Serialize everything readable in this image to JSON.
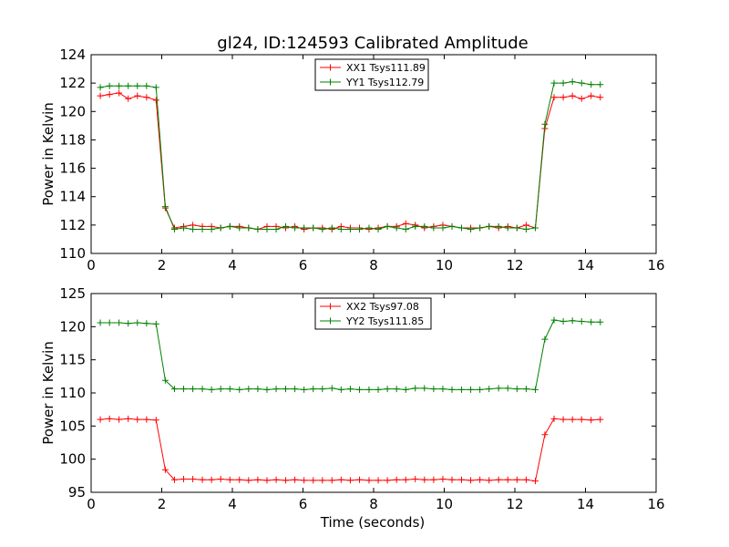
{
  "chart_data": [
    {
      "type": "line",
      "title": "gl24, ID:124593 Calibrated Amplitude",
      "xlabel": "",
      "ylabel": "Power in Kelvin",
      "xlim": [
        0,
        16
      ],
      "ylim": [
        110,
        124
      ],
      "xticks": [
        0,
        2,
        4,
        6,
        8,
        10,
        12,
        14,
        16
      ],
      "yticks": [
        110,
        112,
        114,
        116,
        118,
        120,
        122,
        124
      ],
      "legend": "top-center",
      "grid": false,
      "x": [
        0.26,
        0.52,
        0.79,
        1.05,
        1.31,
        1.57,
        1.84,
        2.1,
        2.36,
        2.62,
        2.88,
        3.15,
        3.41,
        3.67,
        3.93,
        4.2,
        4.46,
        4.72,
        4.98,
        5.24,
        5.51,
        5.77,
        6.03,
        6.29,
        6.55,
        6.82,
        7.08,
        7.34,
        7.6,
        7.87,
        8.13,
        8.39,
        8.65,
        8.91,
        9.18,
        9.44,
        9.7,
        9.96,
        10.22,
        10.49,
        10.75,
        11.01,
        11.27,
        11.54,
        11.8,
        12.06,
        12.32,
        12.58,
        12.85,
        13.11,
        13.37,
        13.63,
        13.89,
        14.16,
        14.42
      ],
      "series": [
        {
          "name": "XX1 Tsys111.89",
          "color": "#ff0000",
          "values": [
            121.1,
            121.2,
            121.3,
            120.9,
            121.1,
            121.0,
            120.8,
            113.2,
            111.8,
            111.9,
            112.0,
            111.9,
            111.9,
            111.8,
            111.9,
            111.9,
            111.8,
            111.7,
            111.9,
            111.9,
            111.8,
            111.9,
            111.7,
            111.8,
            111.8,
            111.7,
            111.9,
            111.8,
            111.8,
            111.7,
            111.8,
            111.9,
            111.9,
            112.1,
            112.0,
            111.8,
            111.9,
            112.0,
            111.9,
            111.8,
            111.8,
            111.8,
            111.9,
            111.8,
            111.9,
            111.8,
            112.0,
            111.8,
            118.8,
            121.0,
            121.0,
            121.1,
            120.9,
            121.1,
            121.0
          ]
        },
        {
          "name": "YY1 Tsys112.79",
          "color": "#008000",
          "values": [
            121.7,
            121.8,
            121.8,
            121.8,
            121.8,
            121.8,
            121.7,
            113.3,
            111.7,
            111.8,
            111.7,
            111.7,
            111.7,
            111.8,
            111.9,
            111.8,
            111.8,
            111.7,
            111.7,
            111.7,
            111.9,
            111.8,
            111.8,
            111.8,
            111.7,
            111.8,
            111.7,
            111.7,
            111.7,
            111.8,
            111.7,
            111.9,
            111.8,
            111.7,
            111.9,
            111.9,
            111.8,
            111.8,
            111.9,
            111.8,
            111.7,
            111.8,
            111.9,
            111.9,
            111.8,
            111.8,
            111.7,
            111.8,
            119.1,
            122.0,
            122.0,
            122.1,
            122.0,
            121.9,
            121.9
          ]
        }
      ]
    },
    {
      "type": "line",
      "title": "",
      "xlabel": "Time (seconds)",
      "ylabel": "Power in Kelvin",
      "xlim": [
        0,
        16
      ],
      "ylim": [
        95,
        125
      ],
      "xticks": [
        0,
        2,
        4,
        6,
        8,
        10,
        12,
        14,
        16
      ],
      "yticks": [
        95,
        100,
        105,
        110,
        115,
        120,
        125
      ],
      "legend": "top-center",
      "grid": false,
      "x": [
        0.26,
        0.52,
        0.79,
        1.05,
        1.31,
        1.57,
        1.84,
        2.1,
        2.36,
        2.62,
        2.88,
        3.15,
        3.41,
        3.67,
        3.93,
        4.2,
        4.46,
        4.72,
        4.98,
        5.24,
        5.51,
        5.77,
        6.03,
        6.29,
        6.55,
        6.82,
        7.08,
        7.34,
        7.6,
        7.87,
        8.13,
        8.39,
        8.65,
        8.91,
        9.18,
        9.44,
        9.7,
        9.96,
        10.22,
        10.49,
        10.75,
        11.01,
        11.27,
        11.54,
        11.8,
        12.06,
        12.32,
        12.58,
        12.85,
        13.11,
        13.37,
        13.63,
        13.89,
        14.16,
        14.42
      ],
      "series": [
        {
          "name": "XX2 Tsys97.08",
          "color": "#ff0000",
          "values": [
            106.0,
            106.1,
            106.0,
            106.1,
            106.0,
            106.0,
            105.9,
            98.4,
            96.9,
            97.0,
            97.0,
            96.9,
            96.9,
            97.0,
            96.9,
            96.9,
            96.8,
            96.9,
            96.8,
            96.9,
            96.8,
            96.9,
            96.8,
            96.8,
            96.8,
            96.8,
            96.9,
            96.8,
            96.9,
            96.8,
            96.8,
            96.8,
            96.9,
            96.9,
            97.0,
            96.9,
            96.9,
            97.0,
            96.9,
            96.9,
            96.8,
            96.9,
            96.8,
            96.9,
            96.9,
            96.9,
            96.9,
            96.7,
            103.7,
            106.1,
            106.0,
            106.0,
            106.0,
            105.9,
            106.0
          ]
        },
        {
          "name": "YY2 Tsys111.85",
          "color": "#008000",
          "values": [
            120.6,
            120.6,
            120.6,
            120.5,
            120.6,
            120.5,
            120.4,
            111.9,
            110.6,
            110.6,
            110.6,
            110.6,
            110.5,
            110.6,
            110.6,
            110.5,
            110.6,
            110.6,
            110.5,
            110.6,
            110.6,
            110.6,
            110.5,
            110.6,
            110.6,
            110.7,
            110.5,
            110.6,
            110.5,
            110.5,
            110.5,
            110.6,
            110.6,
            110.5,
            110.7,
            110.7,
            110.6,
            110.6,
            110.5,
            110.5,
            110.5,
            110.5,
            110.6,
            110.7,
            110.7,
            110.6,
            110.6,
            110.5,
            118.1,
            121.0,
            120.8,
            120.9,
            120.8,
            120.7,
            120.7
          ]
        }
      ]
    }
  ]
}
